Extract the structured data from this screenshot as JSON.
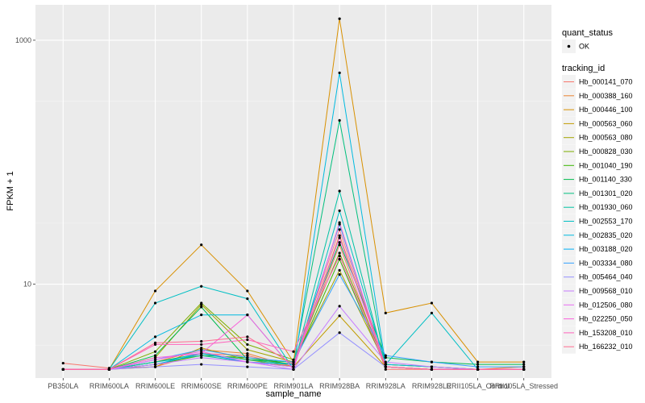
{
  "chart_data": {
    "type": "line",
    "xlabel": "sample_name",
    "ylabel": "FPKM + 1",
    "y_scale": "log10",
    "ylim": [
      1.7,
      1950
    ],
    "y_ticks": [
      10,
      1000
    ],
    "y_tick_labels": [
      "10",
      "1000"
    ],
    "categories": [
      "PB350LA",
      "RRIM600LA",
      "RRIM600LE",
      "RRIM600SE",
      "RRIM600PE",
      "RRIM901LA",
      "RRIM928BA",
      "RRIM928LA",
      "RRIM928LE",
      "RRII105LA_Control",
      "RRII105LA_Stressed"
    ],
    "grid": true,
    "background": "#ebebeb",
    "point_color": "#000000",
    "legend_position": "right",
    "shape_legend": {
      "title": "quant_status",
      "items": [
        "OK"
      ]
    },
    "color_legend_title": "tracking_id",
    "series": [
      {
        "name": "Hb_000141_070",
        "color": "#F8766D",
        "values": [
          2.25,
          2.05,
          2.1,
          2.7,
          2.6,
          2.1,
          21,
          2.0,
          2.0,
          2.0,
          2.0
        ]
      },
      {
        "name": "Hb_000388_160",
        "color": "#EA8331",
        "values": [
          2.0,
          2.0,
          2.3,
          2.9,
          2.7,
          2.1,
          25,
          2.1,
          2.0,
          2.0,
          2.1
        ]
      },
      {
        "name": "Hb_000446_100",
        "color": "#D89000",
        "values": [
          2.0,
          2.0,
          8.8,
          21.0,
          8.8,
          2.3,
          1500,
          5.8,
          7.0,
          2.3,
          2.3
        ]
      },
      {
        "name": "Hb_000563_060",
        "color": "#C09B00",
        "values": [
          2.0,
          2.0,
          2.1,
          3.0,
          2.4,
          2.1,
          5.5,
          2.1,
          2.0,
          2.0,
          2.0
        ]
      },
      {
        "name": "Hb_000563_080",
        "color": "#A3A500",
        "values": [
          2.0,
          2.0,
          2.5,
          6.8,
          2.9,
          2.3,
          13,
          2.2,
          2.1,
          2.0,
          2.0
        ]
      },
      {
        "name": "Hb_000828_030",
        "color": "#7CAE00",
        "values": [
          2.0,
          2.0,
          2.8,
          7.0,
          3.2,
          2.4,
          18,
          2.2,
          2.1,
          2.0,
          2.0
        ]
      },
      {
        "name": "Hb_001040_190",
        "color": "#39B600",
        "values": [
          2.0,
          2.0,
          2.2,
          2.6,
          2.5,
          2.2,
          16,
          2.1,
          2.0,
          2.0,
          2.0
        ]
      },
      {
        "name": "Hb_001140_330",
        "color": "#00BB4E",
        "values": [
          2.0,
          2.0,
          2.6,
          6.5,
          2.4,
          2.3,
          22,
          2.5,
          2.3,
          2.2,
          2.2
        ]
      },
      {
        "name": "Hb_001301_020",
        "color": "#00BF7D",
        "values": [
          2.0,
          2.0,
          2.3,
          2.7,
          2.4,
          2.2,
          220,
          2.1,
          2.0,
          2.0,
          2.0
        ]
      },
      {
        "name": "Hb_001930_060",
        "color": "#00C1A3",
        "values": [
          2.0,
          2.0,
          2.3,
          2.6,
          2.3,
          2.1,
          58,
          2.1,
          2.0,
          2.0,
          2.0
        ]
      },
      {
        "name": "Hb_002553_170",
        "color": "#00BFC4",
        "values": [
          2.0,
          2.0,
          7.0,
          9.6,
          7.6,
          2.0,
          40,
          2.2,
          5.8,
          2.0,
          2.0
        ]
      },
      {
        "name": "Hb_002835_020",
        "color": "#00BAE0",
        "values": [
          2.0,
          2.0,
          3.7,
          5.6,
          5.6,
          2.0,
          540,
          2.2,
          2.1,
          2.0,
          2.0
        ]
      },
      {
        "name": "Hb_003188_020",
        "color": "#00B0F6",
        "values": [
          2.0,
          2.0,
          2.2,
          2.7,
          2.3,
          2.2,
          31,
          2.1,
          2.0,
          2.0,
          2.0
        ]
      },
      {
        "name": "Hb_003334_080",
        "color": "#35A2FF",
        "values": [
          2.0,
          2.0,
          2.4,
          2.9,
          2.5,
          2.3,
          12,
          2.6,
          2.3,
          2.1,
          2.1
        ]
      },
      {
        "name": "Hb_005464_040",
        "color": "#9590FF",
        "values": [
          2.0,
          2.0,
          2.1,
          2.2,
          2.1,
          2.0,
          4.0,
          2.1,
          2.0,
          2.0,
          2.0
        ]
      },
      {
        "name": "Hb_009568_010",
        "color": "#C77CFF",
        "values": [
          2.0,
          2.0,
          2.2,
          2.5,
          2.3,
          2.0,
          6.6,
          2.3,
          2.1,
          2.0,
          2.0
        ]
      },
      {
        "name": "Hb_012506_080",
        "color": "#E76BF3",
        "values": [
          2.0,
          2.0,
          2.4,
          2.8,
          2.3,
          2.1,
          24,
          2.1,
          2.0,
          2.0,
          2.0
        ]
      },
      {
        "name": "Hb_022250_050",
        "color": "#FA62DB",
        "values": [
          2.0,
          2.0,
          2.5,
          2.7,
          5.6,
          2.0,
          32,
          2.1,
          2.0,
          2.0,
          2.0
        ]
      },
      {
        "name": "Hb_153208_010",
        "color": "#FF62BC",
        "values": [
          2.0,
          2.0,
          3.2,
          3.2,
          3.5,
          2.8,
          17,
          2.1,
          2.0,
          2.0,
          2.0
        ]
      },
      {
        "name": "Hb_166232_010",
        "color": "#FF6C91",
        "values": [
          2.0,
          2.0,
          3.3,
          3.4,
          3.7,
          2.2,
          28,
          2.1,
          2.0,
          2.0,
          2.0
        ]
      }
    ]
  }
}
